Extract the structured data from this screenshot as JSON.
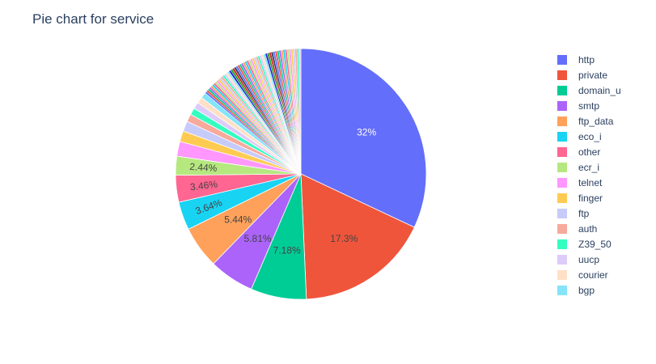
{
  "chart_data": {
    "type": "pie",
    "title": "Pie chart for service",
    "legend_placement": "right",
    "start_angle_deg": 90,
    "direction": "clockwise",
    "slices": [
      {
        "label": "http",
        "percent": 32,
        "text": "32%",
        "color": "#636efa",
        "text_color": "#ffffff"
      },
      {
        "label": "private",
        "percent": 17.3,
        "text": "17.3%",
        "color": "#EF553B",
        "text_color": "#444444"
      },
      {
        "label": "domain_u",
        "percent": 7.18,
        "text": "7.18%",
        "color": "#00cc96",
        "text_color": "#444444"
      },
      {
        "label": "smtp",
        "percent": 5.81,
        "text": "5.81%",
        "color": "#ab63fa",
        "text_color": "#444444"
      },
      {
        "label": "ftp_data",
        "percent": 5.44,
        "text": "5.44%",
        "color": "#FFA15A",
        "text_color": "#444444"
      },
      {
        "label": "eco_i",
        "percent": 3.64,
        "text": "3.64%",
        "color": "#19d3f3",
        "text_color": "#444444",
        "rotate": true
      },
      {
        "label": "other",
        "percent": 3.46,
        "text": "3.46%",
        "color": "#FF6692",
        "text_color": "#444444",
        "rotate": true
      },
      {
        "label": "ecr_i",
        "percent": 2.44,
        "text": "2.44%",
        "color": "#B6E880",
        "text_color": "#444444",
        "rotate": true
      },
      {
        "label": "telnet",
        "percent": 1.9,
        "text": "",
        "color": "#FF97FF",
        "text_color": "#444444"
      },
      {
        "label": "finger",
        "percent": 1.4,
        "text": "",
        "color": "#FECB52",
        "text_color": "#444444"
      },
      {
        "label": "ftp",
        "percent": 1.3,
        "text": "",
        "color": "#c6cbfa",
        "text_color": "#444444"
      },
      {
        "label": "auth",
        "percent": 1.0,
        "text": "",
        "color": "#F7AA9C",
        "text_color": "#444444"
      },
      {
        "label": "Z39_50",
        "percent": 0.9,
        "text": "",
        "color": "#33ffc1",
        "text_color": "#444444"
      },
      {
        "label": "uucp",
        "percent": 0.85,
        "text": "",
        "color": "#ddcbf9",
        "text_color": "#444444"
      },
      {
        "label": "courier",
        "percent": 0.8,
        "text": "",
        "color": "#ffe0c6",
        "text_color": "#444444"
      },
      {
        "label": "bgp",
        "percent": 0.75,
        "text": "",
        "color": "#86e4f8",
        "text_color": "#444444"
      }
    ],
    "other_small_slices": {
      "label": "",
      "count": 54,
      "total_percent": 13.83,
      "colors": [
        "#636efa",
        "#EF553B",
        "#00cc96",
        "#ab63fa",
        "#FFA15A",
        "#19d3f3",
        "#FF6692",
        "#B6E880",
        "#FF97FF",
        "#FECB52",
        "#c6cbfa",
        "#F7AA9C",
        "#33ffc1",
        "#ddcbf9",
        "#ffe0c6",
        "#86e4f8",
        "#1f1fd1",
        "#1fa01f",
        "#d11f1f",
        "#2a3f5f"
      ]
    }
  }
}
